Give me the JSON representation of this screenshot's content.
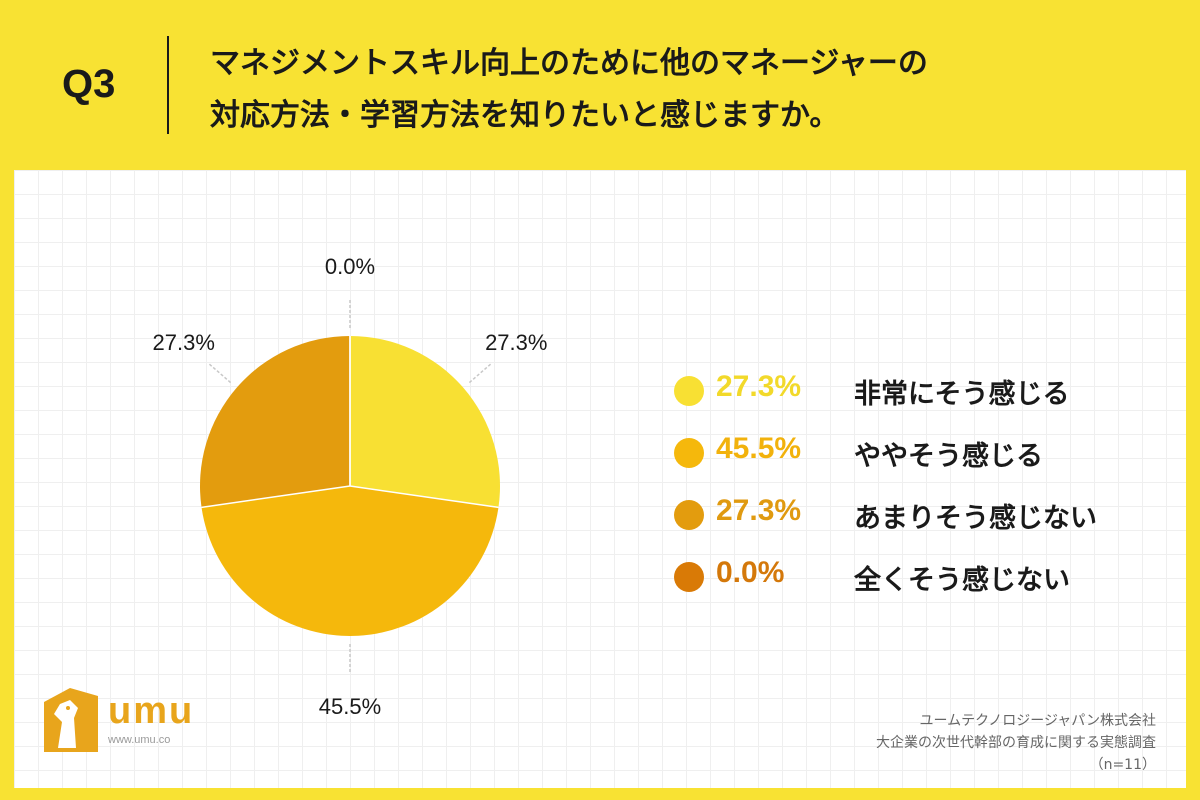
{
  "header": {
    "q_number": "Q3",
    "question_line1": "マネジメントスキル向上のために他のマネージャーの",
    "question_line2": "対応方法・学習方法を知りたいと感じますか。"
  },
  "colors": {
    "background": "#F8E233",
    "slice_very": "#F8E033",
    "slice_somewhat": "#F5B80C",
    "slice_notmuch": "#E39C0E",
    "slice_notatall": "#D97A06",
    "pct_very": "#F2D92A",
    "pct_somewhat": "#F2B20C",
    "pct_notmuch": "#E09A10",
    "pct_notatall": "#D4780A"
  },
  "chart_data": {
    "type": "pie",
    "slices": [
      {
        "label": "非常にそう感じる",
        "value": 27.3,
        "display": "27.3%"
      },
      {
        "label": "ややそう感じる",
        "value": 45.5,
        "display": "45.5%"
      },
      {
        "label": "あまりそう感じない",
        "value": 27.3,
        "display": "27.3%"
      },
      {
        "label": "全くそう感じない",
        "value": 0.0,
        "display": "0.0%"
      }
    ],
    "legend_placement": "right"
  },
  "legend": [
    {
      "pct": "27.3%",
      "label": "非常にそう感じる"
    },
    {
      "pct": "45.5%",
      "label": "ややそう感じる"
    },
    {
      "pct": "27.3%",
      "label": "あまりそう感じない"
    },
    {
      "pct": "0.0%",
      "label": "全くそう感じない"
    }
  ],
  "logo": {
    "wordmark": "umu",
    "url": "www.umu.co"
  },
  "source": {
    "company": "ユームテクノロジージャパン株式会社",
    "survey": "大企業の次世代幹部の育成に関する実態調査",
    "n": "（n=11）"
  }
}
